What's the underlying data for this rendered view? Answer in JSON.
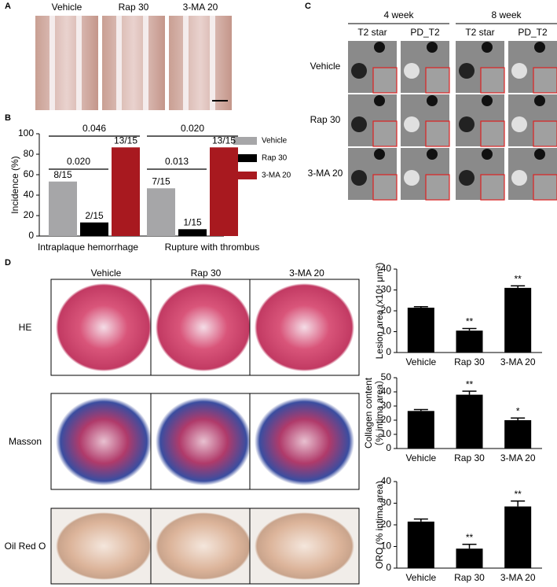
{
  "panels": {
    "A": {
      "label": "A",
      "columns": [
        "Vehicle",
        "Rap 30",
        "3-MA 20"
      ]
    },
    "C": {
      "label": "C",
      "groups": [
        "4 week",
        "8 week"
      ],
      "columns": [
        "T2 star",
        "PD_T2",
        "T2 star",
        "PD_T2"
      ],
      "rows": [
        "Vehicle",
        "Rap 30",
        "3-MA 20"
      ]
    },
    "D": {
      "label": "D",
      "columns": [
        "Vehicle",
        "Rap 30",
        "3-MA 20"
      ],
      "rows": [
        "HE",
        "Masson",
        "Oil Red O"
      ]
    },
    "B": {
      "label": "B"
    }
  },
  "chart_data": [
    {
      "type": "grouped-bar",
      "y_label": "Incidence (%)",
      "categories": [
        "Intraplaque hemorrhage",
        "Rupture with thrombus"
      ],
      "series": [
        {
          "name": "Vehicle",
          "color": "#a6a6a8",
          "values": [
            53.3,
            46.7
          ],
          "value_labels": [
            "8/15",
            "7/15"
          ]
        },
        {
          "name": "Rap 30",
          "color": "#000000",
          "values": [
            13.3,
            6.7
          ],
          "value_labels": [
            "2/15",
            "1/15"
          ]
        },
        {
          "name": "3-MA  20",
          "color": "#a8191f",
          "values": [
            86.7,
            86.7
          ],
          "value_labels": [
            "13/15",
            "13/15"
          ]
        }
      ],
      "annotations": [
        "0.046",
        "0.020",
        "0.020",
        "0.013"
      ],
      "ylim": [
        0,
        100
      ],
      "yticks": [
        0,
        20,
        40,
        60,
        80,
        100
      ]
    },
    {
      "type": "bar",
      "y_label": [
        "Lesion area (x10⁴ μm²)"
      ],
      "categories": [
        "Vehicle",
        "Rap 30",
        "3-MA  20"
      ],
      "color": "#000000",
      "values": [
        21.5,
        10.5,
        31
      ],
      "errors": [
        0.5,
        1,
        1
      ],
      "significance": [
        null,
        "**",
        "**"
      ],
      "ylim": [
        0,
        40
      ],
      "yticks": [
        0,
        10,
        20,
        30,
        40
      ]
    },
    {
      "type": "bar",
      "y_label": [
        "Collagen content",
        "（% intima area）"
      ],
      "categories": [
        "Vehicle",
        "Rap 30",
        "3-MA  20"
      ],
      "color": "#000000",
      "values": [
        26.5,
        38,
        20
      ],
      "errors": [
        1,
        2.5,
        1.5
      ],
      "significance": [
        null,
        "**",
        "*"
      ],
      "ylim": [
        0,
        50
      ],
      "yticks": [
        0,
        10,
        20,
        30,
        40,
        50
      ]
    },
    {
      "type": "bar",
      "y_label": [
        "ORO (% intima area)"
      ],
      "categories": [
        "Vehicle",
        "Rap 30",
        "3-MA  20"
      ],
      "color": "#000000",
      "values": [
        21.5,
        9,
        28.5
      ],
      "errors": [
        1.2,
        2,
        2.5
      ],
      "significance": [
        null,
        "**",
        "**"
      ],
      "ylim": [
        0,
        40
      ],
      "yticks": [
        0,
        10,
        20,
        30,
        40
      ]
    }
  ]
}
